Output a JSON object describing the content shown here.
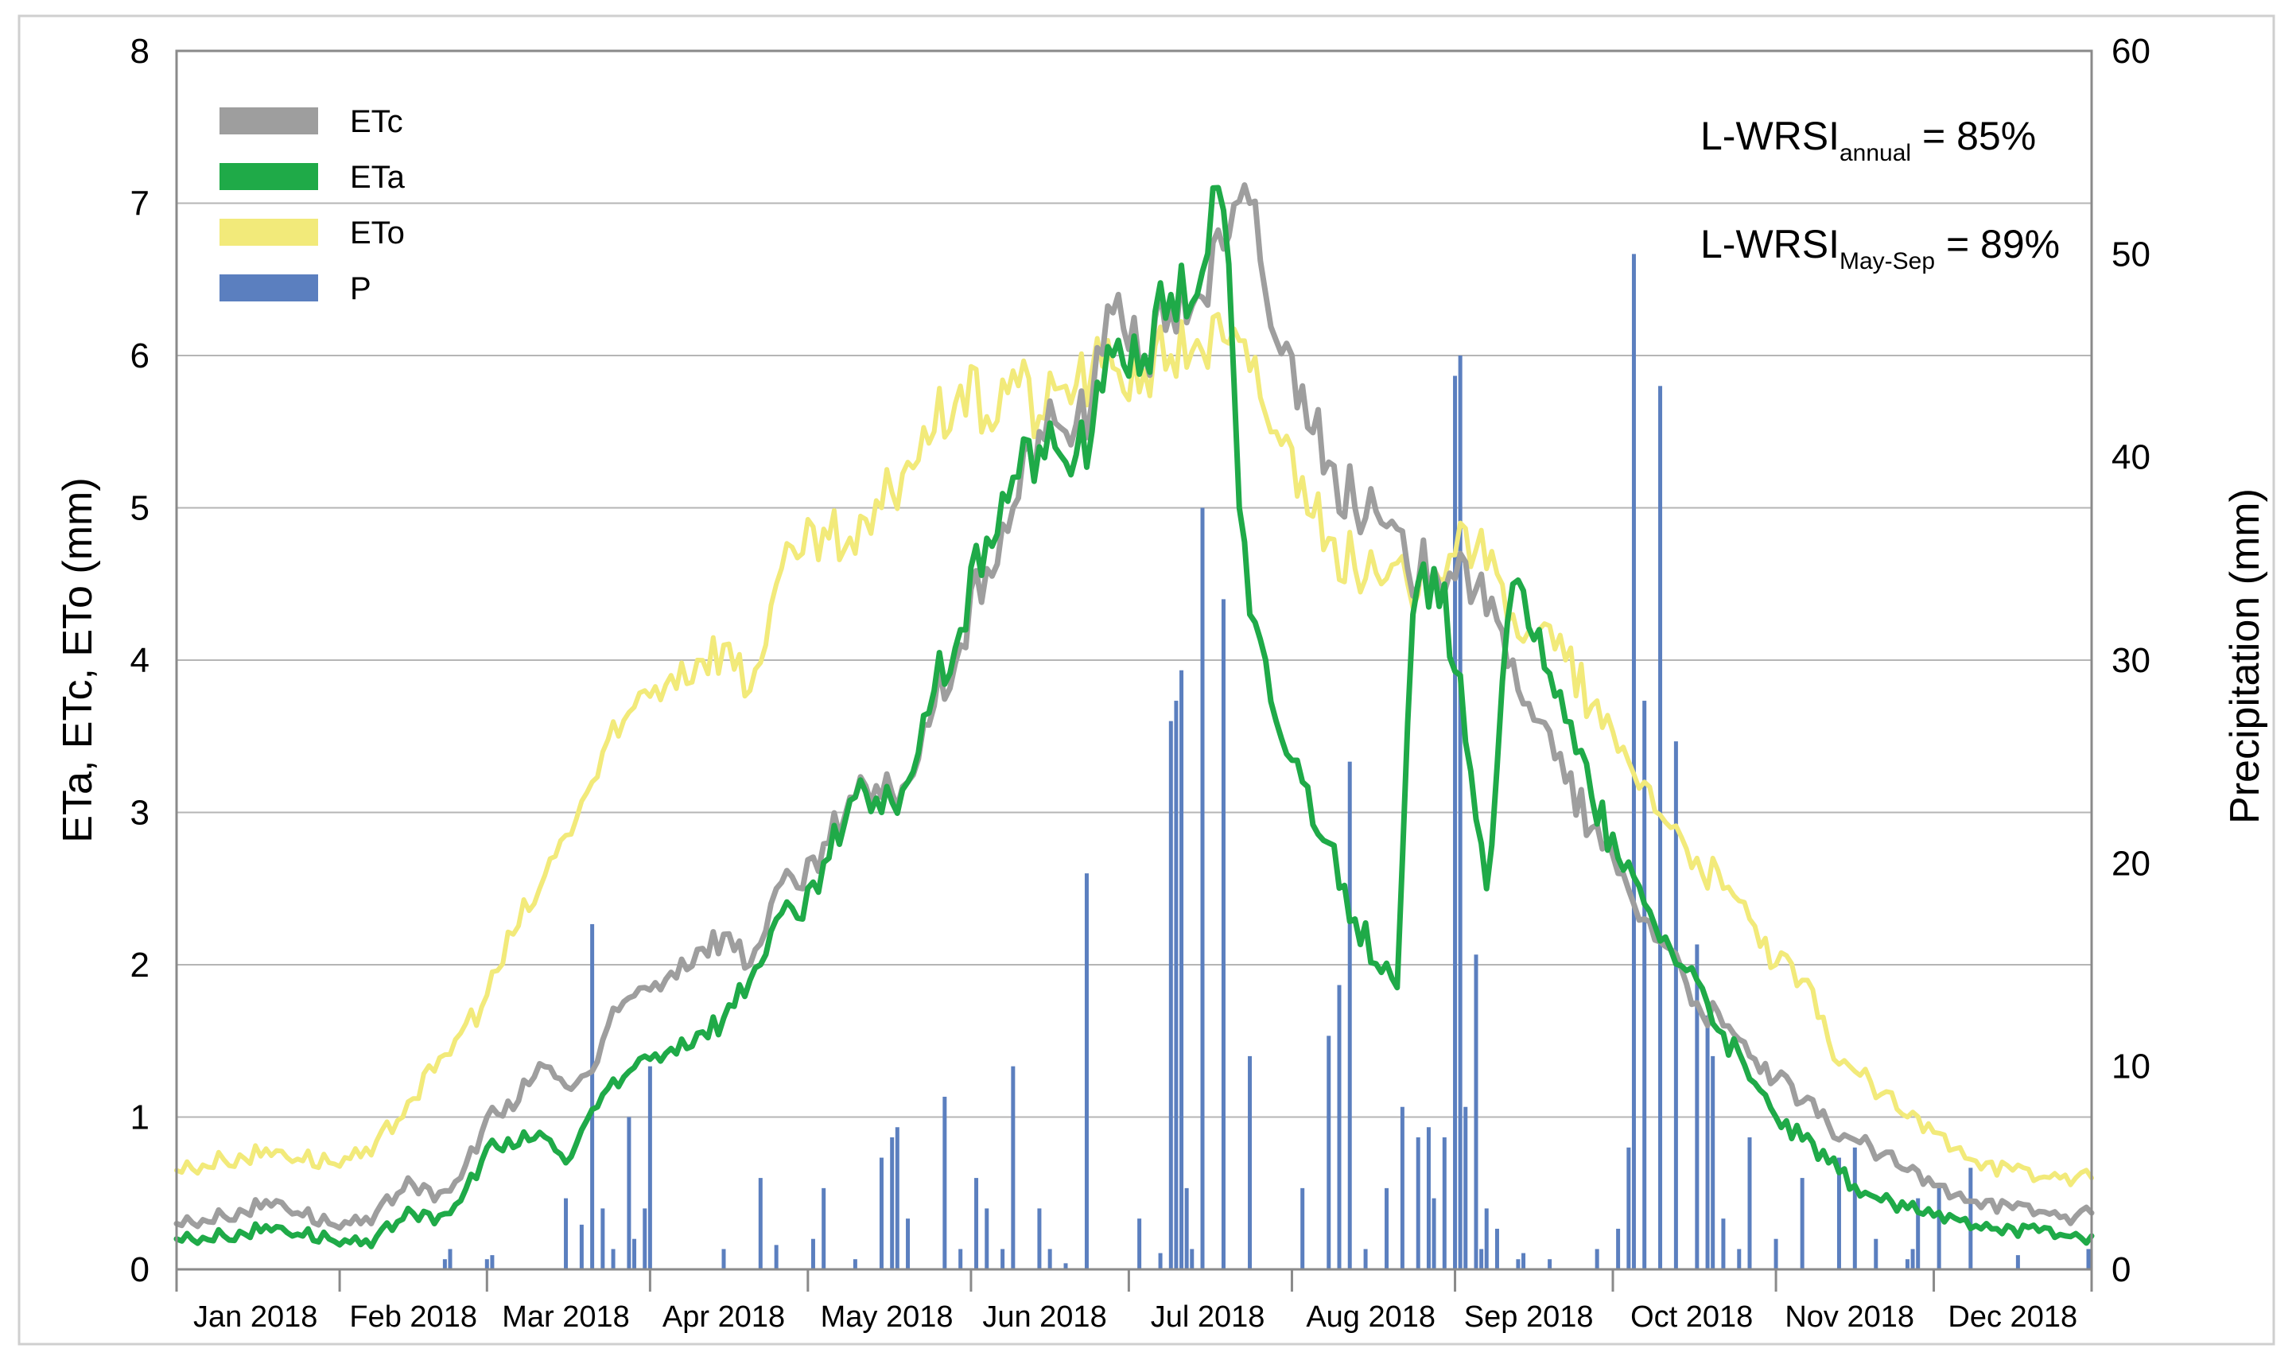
{
  "chart_data": {
    "type": "line",
    "title": "",
    "xlabel": "",
    "ylabel": "ETa, ETc, ETo (mm)",
    "y2label": "Precipitation (mm)",
    "ylim": [
      0,
      8
    ],
    "y2lim": [
      0,
      60
    ],
    "yticks": [
      "0",
      "1",
      "2",
      "3",
      "4",
      "5",
      "6",
      "7",
      "8"
    ],
    "y2ticks": [
      "0",
      "10",
      "20",
      "30",
      "40",
      "50",
      "60"
    ],
    "grid": true,
    "legend_position": "top-left",
    "x_day_range": [
      1,
      365
    ],
    "month_labels": [
      "Jan 2018",
      "Feb 2018",
      "Mar 2018",
      "Apr 2018",
      "May 2018",
      "Jun 2018",
      "Jul 2018",
      "Aug 2018",
      "Sep 2018",
      "Oct 2018",
      "Nov 2018",
      "Dec 2018"
    ],
    "month_label_days": [
      16,
      46,
      75,
      105,
      136,
      166,
      197,
      228,
      258,
      289,
      319,
      350
    ],
    "month_boundary_days": [
      1,
      32,
      60,
      91,
      121,
      152,
      182,
      213,
      244,
      274,
      305,
      335,
      365
    ],
    "legend": [
      {
        "key": "ETc",
        "label": "ETc"
      },
      {
        "key": "ETa",
        "label": "ETa"
      },
      {
        "key": "ETo",
        "label": "ETo"
      },
      {
        "key": "P",
        "label": "P"
      }
    ],
    "annotations": {
      "annual": {
        "main": "L-WRSI",
        "sub": "annual",
        "value": " = 85%"
      },
      "mayseptember": {
        "main": "L-WRSI",
        "sub": "May-Sep",
        "value": " = 89%"
      }
    },
    "series": [
      {
        "name": "ETc",
        "axis": "left",
        "color": "#9e9e9e",
        "x": [
          1,
          10,
          20,
          30,
          38,
          45,
          50,
          55,
          60,
          65,
          70,
          75,
          80,
          85,
          90,
          95,
          100,
          105,
          110,
          115,
          120,
          125,
          130,
          135,
          140,
          145,
          150,
          155,
          160,
          165,
          170,
          175,
          180,
          185,
          190,
          195,
          200,
          205,
          210,
          215,
          220,
          225,
          230,
          235,
          240,
          245,
          250,
          255,
          260,
          265,
          270,
          275,
          280,
          285,
          290,
          295,
          300,
          305,
          310,
          315,
          320,
          325,
          330,
          335,
          340,
          345,
          350,
          355,
          360,
          365
        ],
        "y": [
          0.3,
          0.35,
          0.45,
          0.3,
          0.3,
          0.6,
          0.45,
          0.6,
          1.0,
          1.05,
          1.35,
          1.2,
          1.3,
          1.7,
          1.85,
          1.95,
          2.1,
          2.2,
          2.0,
          2.5,
          2.5,
          2.8,
          3.1,
          3.1,
          3.2,
          3.7,
          4.1,
          4.6,
          5.0,
          5.5,
          5.5,
          5.7,
          6.4,
          6.0,
          6.3,
          6.4,
          6.7,
          7.0,
          6.1,
          5.8,
          5.3,
          5.0,
          4.9,
          4.6,
          4.6,
          4.7,
          4.3,
          4.0,
          3.6,
          3.2,
          2.9,
          2.6,
          2.3,
          2.1,
          1.75,
          1.6,
          1.4,
          1.25,
          1.1,
          0.95,
          0.85,
          0.75,
          0.65,
          0.55,
          0.5,
          0.45,
          0.4,
          0.38,
          0.35,
          0.37
        ]
      },
      {
        "name": "ETa",
        "axis": "left",
        "color": "#1faa48",
        "x": [
          1,
          10,
          20,
          30,
          38,
          45,
          50,
          55,
          60,
          65,
          70,
          75,
          80,
          85,
          90,
          95,
          100,
          105,
          110,
          115,
          120,
          125,
          130,
          135,
          140,
          145,
          150,
          155,
          160,
          165,
          170,
          175,
          180,
          185,
          190,
          195,
          198,
          201,
          203,
          205,
          210,
          215,
          220,
          225,
          230,
          233,
          236,
          240,
          245,
          250,
          255,
          260,
          265,
          270,
          275,
          280,
          285,
          290,
          295,
          300,
          305,
          310,
          315,
          320,
          325,
          330,
          335,
          340,
          345,
          350,
          355,
          360,
          365
        ],
        "y": [
          0.2,
          0.22,
          0.28,
          0.2,
          0.15,
          0.4,
          0.3,
          0.45,
          0.8,
          0.8,
          0.9,
          0.7,
          1.05,
          1.2,
          1.4,
          1.45,
          1.55,
          1.65,
          1.9,
          2.3,
          2.3,
          2.7,
          3.1,
          3.0,
          3.2,
          3.8,
          4.2,
          4.8,
          5.2,
          5.4,
          5.3,
          5.5,
          6.1,
          6.0,
          6.4,
          6.4,
          7.1,
          6.6,
          5.0,
          4.3,
          3.6,
          3.2,
          2.8,
          2.3,
          1.95,
          1.85,
          4.3,
          4.6,
          3.9,
          2.5,
          4.5,
          4.2,
          3.6,
          3.1,
          2.7,
          2.4,
          2.1,
          1.9,
          1.55,
          1.25,
          1.0,
          0.85,
          0.7,
          0.55,
          0.45,
          0.4,
          0.35,
          0.32,
          0.3,
          0.27,
          0.25,
          0.22,
          0.22
        ]
      },
      {
        "name": "ETo",
        "axis": "left",
        "color": "#f2ea7a",
        "x": [
          1,
          10,
          20,
          30,
          38,
          45,
          50,
          55,
          60,
          65,
          70,
          75,
          80,
          85,
          90,
          95,
          100,
          105,
          110,
          115,
          120,
          125,
          130,
          135,
          140,
          145,
          150,
          155,
          160,
          165,
          170,
          175,
          180,
          185,
          190,
          195,
          200,
          205,
          210,
          215,
          220,
          225,
          230,
          235,
          240,
          245,
          250,
          255,
          260,
          265,
          270,
          275,
          280,
          285,
          290,
          295,
          300,
          305,
          310,
          315,
          320,
          325,
          330,
          335,
          340,
          345,
          350,
          355,
          360,
          365
        ],
        "y": [
          0.65,
          0.72,
          0.78,
          0.7,
          0.75,
          1.1,
          1.3,
          1.55,
          1.8,
          2.2,
          2.5,
          2.85,
          3.2,
          3.5,
          3.8,
          3.9,
          4.0,
          4.1,
          3.8,
          4.5,
          4.7,
          4.8,
          4.7,
          5.0,
          5.3,
          5.5,
          5.8,
          5.6,
          5.9,
          5.6,
          5.8,
          5.9,
          5.9,
          5.9,
          6.0,
          6.1,
          6.1,
          5.9,
          5.5,
          5.2,
          4.8,
          4.6,
          4.5,
          4.5,
          4.6,
          4.9,
          4.6,
          4.3,
          4.2,
          4.0,
          3.7,
          3.4,
          3.2,
          2.9,
          2.7,
          2.5,
          2.3,
          2.0,
          1.9,
          1.5,
          1.3,
          1.15,
          1.0,
          0.9,
          0.8,
          0.7,
          0.65,
          0.6,
          0.62,
          0.6
        ]
      },
      {
        "name": "P",
        "axis": "right",
        "type": "bar",
        "color": "#5b7fbf",
        "x": [
          52,
          53,
          60,
          61,
          75,
          78,
          80,
          82,
          84,
          87,
          88,
          90,
          91,
          105,
          112,
          115,
          122,
          124,
          130,
          135,
          137,
          138,
          140,
          147,
          150,
          153,
          155,
          158,
          160,
          165,
          167,
          170,
          174,
          184,
          188,
          190,
          191,
          192,
          193,
          194,
          196,
          200,
          205,
          215,
          220,
          222,
          224,
          227,
          231,
          234,
          237,
          239,
          240,
          242,
          244,
          245,
          246,
          248,
          249,
          250,
          252,
          256,
          257,
          262,
          271,
          275,
          277,
          278,
          280,
          283,
          286,
          290,
          292,
          293,
          295,
          298,
          300,
          305,
          310,
          317,
          320,
          324,
          330,
          331,
          332,
          336,
          342,
          351,
          367
        ],
        "y": [
          0.5,
          1.0,
          0.5,
          0.7,
          3.5,
          2.2,
          17.0,
          3.0,
          1.0,
          7.5,
          1.5,
          3.0,
          10.0,
          1.0,
          4.5,
          1.2,
          1.5,
          4.0,
          0.5,
          5.5,
          6.5,
          7.0,
          2.5,
          8.5,
          1.0,
          4.5,
          3.0,
          1.0,
          10.0,
          3.0,
          1.0,
          0.3,
          19.5,
          2.5,
          0.8,
          27.0,
          28.0,
          29.5,
          4.0,
          1.0,
          37.5,
          33.0,
          10.5,
          4.0,
          11.5,
          14.0,
          25.0,
          1.0,
          4.0,
          8.0,
          6.5,
          7.0,
          3.5,
          6.5,
          44.0,
          45.0,
          8.0,
          15.5,
          1.0,
          3.0,
          2.0,
          0.5,
          0.8,
          0.5,
          1.0,
          2.0,
          6.0,
          50.0,
          28.0,
          43.5,
          26.0,
          16.0,
          12.5,
          10.5,
          2.5,
          1.0,
          6.5,
          1.5,
          4.5,
          5.5,
          6.0,
          1.5,
          0.5,
          1.0,
          3.5,
          4.0,
          5.0,
          0.7,
          1.0
        ]
      }
    ]
  }
}
